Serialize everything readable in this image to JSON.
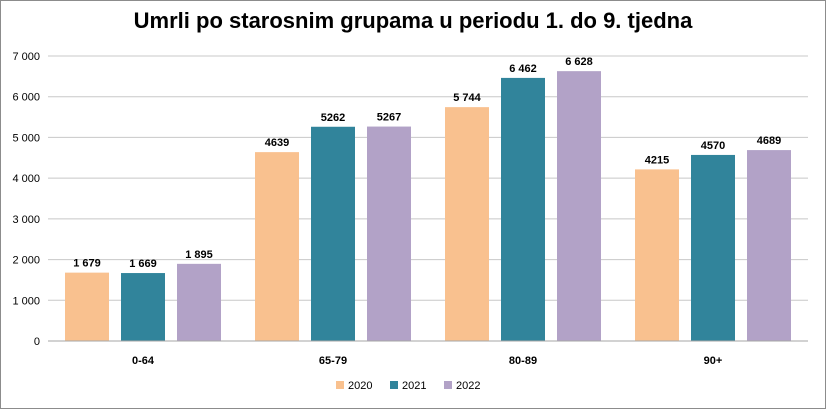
{
  "chart_data": {
    "type": "bar",
    "title": "Umrli po starosnim grupama u periodu 1. do 9. tjedna",
    "xlabel": "",
    "ylabel": "",
    "categories": [
      "0-64",
      "65-79",
      "80-89",
      "90+"
    ],
    "series": [
      {
        "name": "2020",
        "color": "#f9c18f",
        "values": [
          1679,
          4639,
          5744,
          4215
        ],
        "labels": [
          "1 679",
          "4639",
          "5 744",
          "4215"
        ]
      },
      {
        "name": "2021",
        "color": "#31849b",
        "values": [
          1669,
          5262,
          6462,
          4570
        ],
        "labels": [
          "1 669",
          "5262",
          "6 462",
          "4570"
        ]
      },
      {
        "name": "2022",
        "color": "#b2a2c7",
        "values": [
          1895,
          5267,
          6628,
          4689
        ],
        "labels": [
          "1 895",
          "5267",
          "6 628",
          "4689"
        ]
      }
    ],
    "ylim": [
      0,
      7000
    ],
    "yticks": [
      0,
      1000,
      2000,
      3000,
      4000,
      5000,
      6000,
      7000
    ],
    "ytick_labels": [
      "0",
      "1 000",
      "2 000",
      "3 000",
      "4 000",
      "5 000",
      "6 000",
      "7 000"
    ],
    "grid": true,
    "legend_position": "bottom-center"
  }
}
